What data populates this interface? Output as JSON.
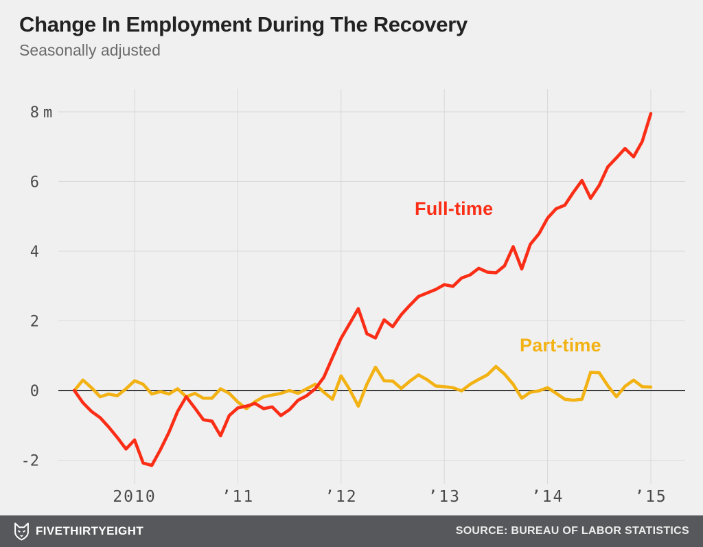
{
  "header": {
    "title": "Change In Employment During The Recovery",
    "subtitle": "Seasonally adjusted"
  },
  "chart_data": {
    "type": "line",
    "title": "Change In Employment During The Recovery",
    "subtitle": "Seasonally adjusted",
    "x_unit": "month",
    "grid": true,
    "ylim": [
      -2.6,
      8.6
    ],
    "y_unit_suffix": "m",
    "x": [
      "2009-06",
      "2009-07",
      "2009-08",
      "2009-09",
      "2009-10",
      "2009-11",
      "2009-12",
      "2010-01",
      "2010-02",
      "2010-03",
      "2010-04",
      "2010-05",
      "2010-06",
      "2010-07",
      "2010-08",
      "2010-09",
      "2010-10",
      "2010-11",
      "2010-12",
      "2011-01",
      "2011-02",
      "2011-03",
      "2011-04",
      "2011-05",
      "2011-06",
      "2011-07",
      "2011-08",
      "2011-09",
      "2011-10",
      "2011-11",
      "2011-12",
      "2012-01",
      "2012-02",
      "2012-03",
      "2012-04",
      "2012-05",
      "2012-06",
      "2012-07",
      "2012-08",
      "2012-09",
      "2012-10",
      "2012-11",
      "2012-12",
      "2013-01",
      "2013-02",
      "2013-03",
      "2013-04",
      "2013-05",
      "2013-06",
      "2013-07",
      "2013-08",
      "2013-09",
      "2013-10",
      "2013-11",
      "2013-12",
      "2014-01",
      "2014-02",
      "2014-03",
      "2014-04",
      "2014-05",
      "2014-06",
      "2014-07",
      "2014-08",
      "2014-09",
      "2014-10",
      "2014-11",
      "2014-12",
      "2015-01"
    ],
    "series": [
      {
        "name": "Full-time",
        "color": "#fa2e17",
        "values": [
          0,
          -0.35,
          -0.6,
          -0.78,
          -1.05,
          -1.35,
          -1.68,
          -1.42,
          -2.08,
          -2.15,
          -1.7,
          -1.2,
          -0.6,
          -0.18,
          -0.5,
          -0.84,
          -0.88,
          -1.3,
          -0.72,
          -0.5,
          -0.45,
          -0.37,
          -0.52,
          -0.47,
          -0.72,
          -0.55,
          -0.28,
          -0.15,
          0.05,
          0.38,
          0.95,
          1.5,
          1.92,
          2.35,
          1.63,
          1.51,
          2.03,
          1.83,
          2.18,
          2.45,
          2.7,
          2.8,
          2.9,
          3.04,
          2.99,
          3.23,
          3.32,
          3.51,
          3.4,
          3.38,
          3.58,
          4.13,
          3.49,
          4.2,
          4.5,
          4.95,
          5.22,
          5.32,
          5.69,
          6.03,
          5.52,
          5.89,
          6.42,
          6.68,
          6.95,
          6.71,
          7.15,
          7.95
        ]
      },
      {
        "name": "Part-time",
        "color": "#f3b214",
        "values": [
          0,
          0.3,
          0.08,
          -0.18,
          -0.1,
          -0.15,
          0.05,
          0.28,
          0.18,
          -0.1,
          -0.03,
          -0.1,
          0.05,
          -0.18,
          -0.08,
          -0.22,
          -0.22,
          0.05,
          -0.08,
          -0.33,
          -0.52,
          -0.32,
          -0.18,
          -0.13,
          -0.08,
          0.0,
          -0.08,
          0.05,
          0.18,
          -0.05,
          -0.25,
          0.42,
          0.03,
          -0.45,
          0.18,
          0.67,
          0.28,
          0.27,
          0.06,
          0.27,
          0.45,
          0.31,
          0.13,
          0.11,
          0.08,
          -0.01,
          0.18,
          0.32,
          0.45,
          0.69,
          0.47,
          0.18,
          -0.22,
          -0.05,
          -0.01,
          0.08,
          -0.08,
          -0.25,
          -0.28,
          -0.25,
          0.52,
          0.51,
          0.14,
          -0.18,
          0.12,
          0.3,
          0.11,
          0.1
        ]
      }
    ],
    "y_ticks": [
      {
        "value": 8,
        "label": "8",
        "suffix": "m"
      },
      {
        "value": 6,
        "label": "6"
      },
      {
        "value": 4,
        "label": "4"
      },
      {
        "value": 2,
        "label": "2"
      },
      {
        "value": 0,
        "label": "0"
      },
      {
        "value": -2,
        "label": "-2"
      }
    ],
    "x_ticks": [
      {
        "month_index": 7,
        "label": "2010"
      },
      {
        "month_index": 19,
        "label": "’11"
      },
      {
        "month_index": 31,
        "label": "’12"
      },
      {
        "month_index": 43,
        "label": "’13"
      },
      {
        "month_index": 55,
        "label": "’14"
      },
      {
        "month_index": 67,
        "label": "’15"
      }
    ]
  },
  "footer": {
    "brand": "FIVETHIRTYEIGHT",
    "source": "SOURCE: BUREAU OF LABOR STATISTICS",
    "bar_color": "#57585b"
  }
}
